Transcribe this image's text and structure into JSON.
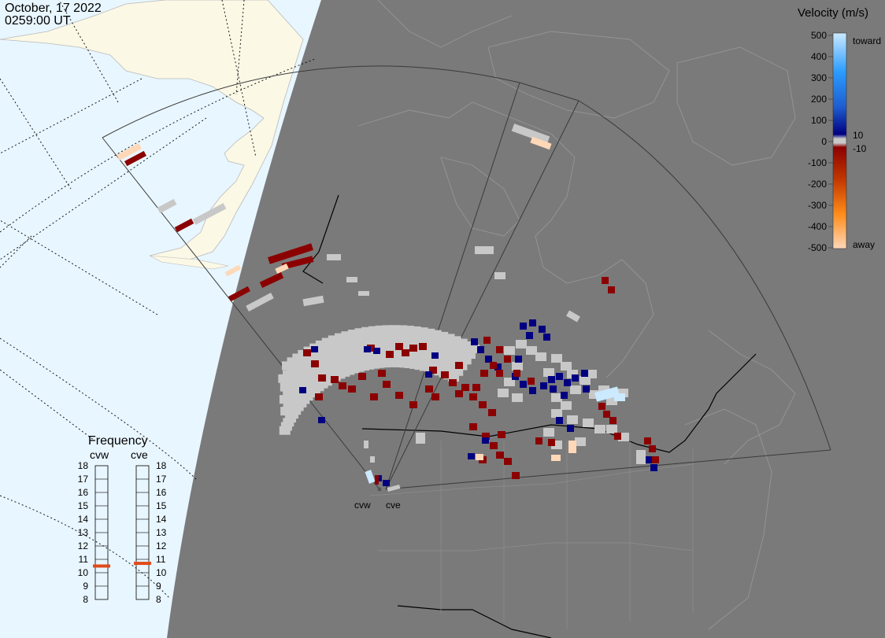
{
  "header": {
    "date": "October, 17 2022",
    "time": "0259:00 UT"
  },
  "velocity_scale": {
    "title": "Velocity (m/s)",
    "ticks": [
      "500",
      "400",
      "300",
      "200",
      "100",
      "0",
      "-100",
      "-200",
      "-300",
      "-400",
      "-500"
    ],
    "toward_label": "toward",
    "away_label": "away",
    "inner_pos": "10",
    "inner_neg": "-10",
    "colors": {
      "toward_light": "#cbe9ff",
      "toward_mid": "#2a9cff",
      "toward_dark": "#000080",
      "ground": "#c8c8c8",
      "away_dark": "#8b0000",
      "away_mid": "#ff7a00",
      "away_light": "#ffd8b8"
    }
  },
  "radars": [
    {
      "code": "cvw",
      "frequency_mhz": 10.5
    },
    {
      "code": "cve",
      "frequency_mhz": 10.7
    }
  ],
  "frequency_panel": {
    "title": "Frequency",
    "scale": [
      "18",
      "17",
      "16",
      "15",
      "14",
      "13",
      "12",
      "11",
      "10",
      "9",
      "8"
    ]
  },
  "colors": {
    "ocean": "#e8f6ff",
    "land_day": "#fbf8e6",
    "night": "#7a7a7a",
    "coast": "#969696",
    "marker": "#e04a1a"
  }
}
